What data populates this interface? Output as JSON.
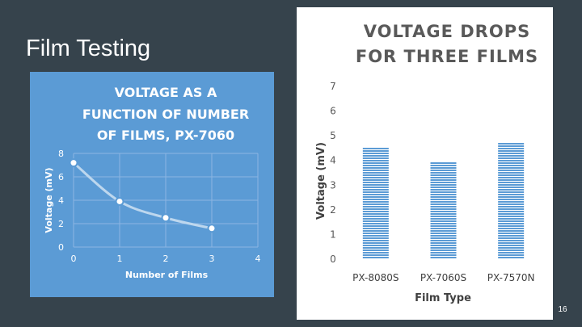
{
  "slide": {
    "title": "Film Testing",
    "page_number": "16",
    "background": "#36434c"
  },
  "chart_data": [
    {
      "type": "line",
      "title": "VOLTAGE AS A FUNCTION OF NUMBER OF FILMS, PX-7060",
      "title_lines": [
        "VOLTAGE AS A",
        "FUNCTION OF NUMBER",
        "OF FILMS, PX-7060"
      ],
      "xlabel": "Number of Films",
      "ylabel": "Voltage (mV)",
      "xlim": [
        0,
        4
      ],
      "ylim": [
        0,
        8
      ],
      "xticks": [
        0,
        1,
        2,
        3,
        4
      ],
      "yticks": [
        0,
        2,
        4,
        6,
        8
      ],
      "grid": true,
      "smooth": true,
      "x": [
        0,
        1,
        2,
        3
      ],
      "y": [
        7.2,
        3.9,
        2.5,
        1.6
      ],
      "background": "#5b9bd5",
      "line_color": "#bdd7ee"
    },
    {
      "type": "bar",
      "title": "VOLTAGE DROPS FOR THREE FILMS",
      "title_lines": [
        "VOLTAGE DROPS",
        "FOR THREE FILMS"
      ],
      "xlabel": "Film Type",
      "ylabel": "Voltage (mV)",
      "ylim": [
        0,
        7
      ],
      "yticks": [
        0,
        1,
        2,
        3,
        4,
        5,
        6,
        7
      ],
      "grid": false,
      "categories": [
        "PX-8080S",
        "PX-7060S",
        "PX-7570N"
      ],
      "values": [
        4.5,
        3.9,
        4.7
      ],
      "bar_color": "#5b9bd5"
    }
  ]
}
